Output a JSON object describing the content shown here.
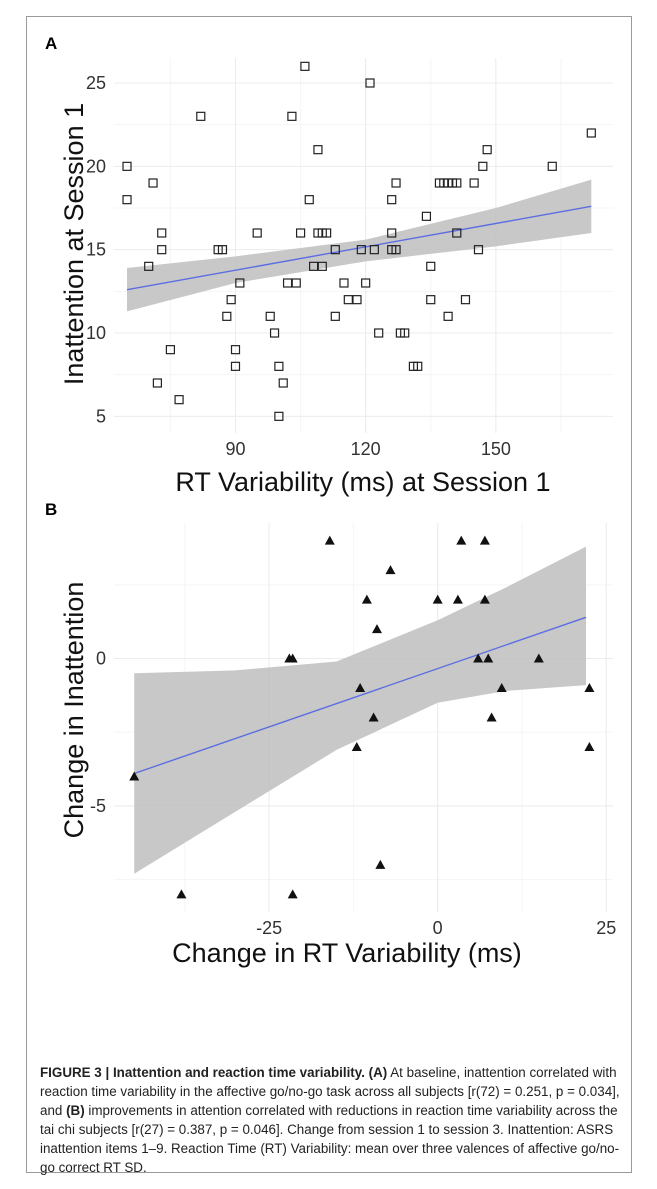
{
  "chart_data": [
    {
      "panel": "A",
      "type": "scatter",
      "xlabel": "RT Variability (ms)  at Session 1",
      "ylabel": "Inattention  at Session 1",
      "xlim": [
        62,
        177
      ],
      "ylim": [
        4,
        26.5
      ],
      "xticks": [
        90,
        120,
        150
      ],
      "yticks": [
        5,
        10,
        15,
        20,
        25
      ],
      "grid": true,
      "marker": "open-square",
      "fit": {
        "x0": 65,
        "y0": 12.6,
        "x1": 172,
        "y1": 17.6,
        "color": "#5b6ee1"
      },
      "band": {
        "x": [
          65,
          90,
          120,
          150,
          172
        ],
        "lower": [
          11.3,
          13.0,
          14.3,
          15.2,
          16.0
        ],
        "upper": [
          13.9,
          14.6,
          15.6,
          17.5,
          19.2
        ],
        "color": "#bebebe"
      },
      "points": [
        [
          65,
          18
        ],
        [
          65,
          20
        ],
        [
          70,
          14
        ],
        [
          71,
          19
        ],
        [
          72,
          7
        ],
        [
          73,
          16
        ],
        [
          73,
          15
        ],
        [
          75,
          9
        ],
        [
          77,
          6
        ],
        [
          82,
          23
        ],
        [
          86,
          15
        ],
        [
          87,
          15
        ],
        [
          88,
          11
        ],
        [
          89,
          12
        ],
        [
          90,
          8
        ],
        [
          90,
          9
        ],
        [
          91,
          13
        ],
        [
          95,
          16
        ],
        [
          98,
          11
        ],
        [
          99,
          10
        ],
        [
          100,
          8
        ],
        [
          100,
          5
        ],
        [
          101,
          7
        ],
        [
          102,
          13
        ],
        [
          103,
          23
        ],
        [
          104,
          13
        ],
        [
          105,
          16
        ],
        [
          106,
          26
        ],
        [
          107,
          18
        ],
        [
          108,
          14
        ],
        [
          109,
          16
        ],
        [
          109,
          21
        ],
        [
          110,
          14
        ],
        [
          110,
          16
        ],
        [
          111,
          16
        ],
        [
          113,
          11
        ],
        [
          113,
          15
        ],
        [
          115,
          13
        ],
        [
          116,
          12
        ],
        [
          118,
          12
        ],
        [
          119,
          15
        ],
        [
          120,
          13
        ],
        [
          121,
          25
        ],
        [
          122,
          15
        ],
        [
          123,
          10
        ],
        [
          126,
          15
        ],
        [
          126,
          16
        ],
        [
          126,
          18
        ],
        [
          127,
          15
        ],
        [
          127,
          19
        ],
        [
          128,
          10
        ],
        [
          129,
          10
        ],
        [
          131,
          8
        ],
        [
          132,
          8
        ],
        [
          134,
          17
        ],
        [
          135,
          12
        ],
        [
          135,
          14
        ],
        [
          137,
          19
        ],
        [
          138,
          19
        ],
        [
          139,
          11
        ],
        [
          139,
          19
        ],
        [
          140,
          19
        ],
        [
          141,
          19
        ],
        [
          141,
          16
        ],
        [
          143,
          12
        ],
        [
          145,
          19
        ],
        [
          146,
          15
        ],
        [
          147,
          20
        ],
        [
          148,
          21
        ],
        [
          163,
          20
        ],
        [
          172,
          22
        ]
      ]
    },
    {
      "panel": "B",
      "type": "scatter",
      "xlabel": "Change in  RT Variability (ms)",
      "ylabel": "Change in  Inattention",
      "xlim": [
        -48,
        26
      ],
      "ylim": [
        -8.6,
        4.6
      ],
      "xticks": [
        -25,
        0,
        25
      ],
      "xtick_labels": [
        "-25",
        "0",
        "25"
      ],
      "yticks": [
        -5,
        0
      ],
      "ytick_labels": [
        "-5",
        "0"
      ],
      "grid": true,
      "marker": "filled-triangle",
      "fit": {
        "x0": -45,
        "y0": -3.9,
        "x1": 22,
        "y1": 1.4,
        "color": "#5b6ee1"
      },
      "band": {
        "x": [
          -45,
          -30,
          -15,
          0,
          10,
          22
        ],
        "lower": [
          -7.3,
          -5.2,
          -3.1,
          -1.5,
          -1.1,
          -0.9
        ],
        "upper": [
          -0.5,
          -0.4,
          -0.1,
          1.3,
          2.4,
          3.8
        ],
        "color": "#bebebe"
      },
      "points": [
        [
          -45,
          -4
        ],
        [
          -38,
          -8
        ],
        [
          -22,
          0
        ],
        [
          -21.5,
          0
        ],
        [
          -21.5,
          -8
        ],
        [
          -16,
          4
        ],
        [
          -12,
          -3
        ],
        [
          -11.5,
          -1
        ],
        [
          -10.5,
          2
        ],
        [
          -9.5,
          -2
        ],
        [
          -9,
          1
        ],
        [
          -8.5,
          -7
        ],
        [
          -7,
          3
        ],
        [
          0,
          2
        ],
        [
          3,
          2
        ],
        [
          3.5,
          4
        ],
        [
          6,
          0
        ],
        [
          7,
          4
        ],
        [
          7,
          2
        ],
        [
          7.5,
          0
        ],
        [
          8,
          -2
        ],
        [
          9.5,
          -1
        ],
        [
          15,
          0
        ],
        [
          22.5,
          -1
        ],
        [
          22.5,
          -3
        ]
      ]
    }
  ],
  "caption": {
    "lead": "FIGURE 3 | Inattention and reaction time variability.",
    "a_label": "(A)",
    "part1": " At baseline, inattention correlated with reaction time variability in the affective go/no-go task across all subjects [r(72) = 0.251, p = 0.034], and ",
    "b_label": "(B)",
    "part2": " improvements in attention correlated with reductions in reaction time variability across the tai chi subjects [r(27) = 0.387, p = 0.046]. Change from session 1 to session 3. Inattention: ASRS inattention items 1–9. Reaction Time (RT) Variability: mean over three valences of affective go/no-go correct RT SD."
  }
}
